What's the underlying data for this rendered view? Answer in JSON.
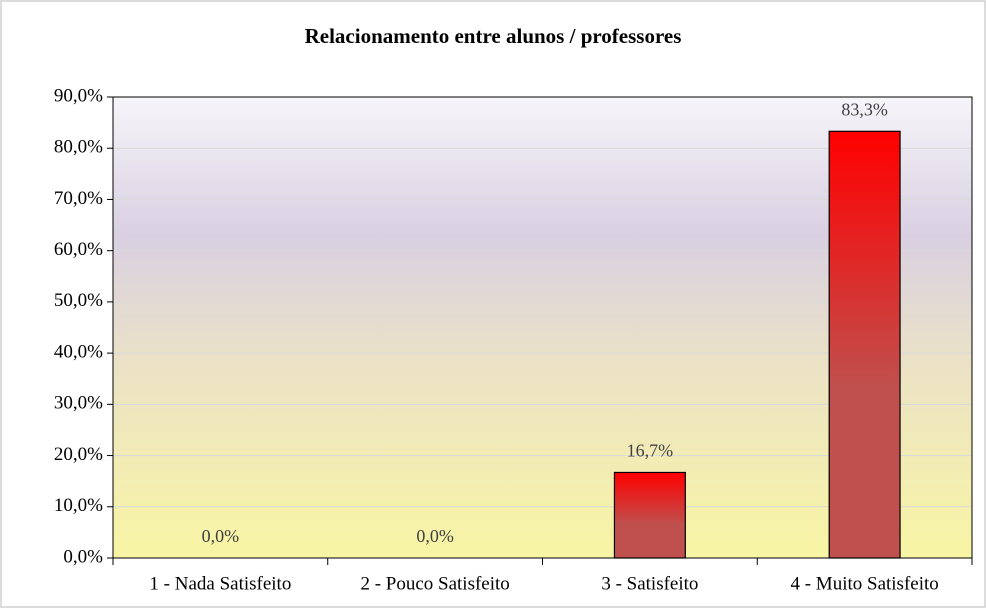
{
  "chart_data": {
    "type": "bar",
    "title": "Relacionamento entre alunos / professores",
    "categories": [
      "1 - Nada Satisfeito",
      "2 - Pouco Satisfeito",
      "3 - Satisfeito",
      "4 - Muito Satisfeito"
    ],
    "values": [
      0,
      0,
      16.7,
      83.3
    ],
    "value_labels": [
      "0,0%",
      "0,0%",
      "16,7%",
      "83,3%"
    ],
    "color": "#c0504d",
    "ylim": [
      0,
      90
    ],
    "yticks": [
      {
        "value": 0,
        "label": "0,0%"
      },
      {
        "value": 10,
        "label": "10,0%"
      },
      {
        "value": 20,
        "label": "20,0%"
      },
      {
        "value": 30,
        "label": "30,0%"
      },
      {
        "value": 40,
        "label": "40,0%"
      },
      {
        "value": 50,
        "label": "50,0%"
      },
      {
        "value": 60,
        "label": "60,0%"
      },
      {
        "value": 70,
        "label": "70,0%"
      },
      {
        "value": 80,
        "label": "80,0%"
      },
      {
        "value": 90,
        "label": "90,0%"
      }
    ],
    "grid": true
  }
}
